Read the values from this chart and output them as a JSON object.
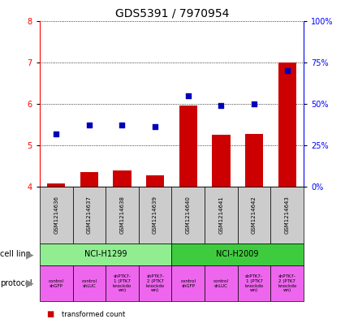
{
  "title": "GDS5391 / 7970954",
  "samples": [
    "GSM1214636",
    "GSM1214637",
    "GSM1214638",
    "GSM1214639",
    "GSM1214640",
    "GSM1214641",
    "GSM1214642",
    "GSM1214643"
  ],
  "transformed_count": [
    4.07,
    4.35,
    4.38,
    4.28,
    5.96,
    5.25,
    5.27,
    7.0
  ],
  "percentile_rank": [
    32,
    37,
    37,
    36,
    55,
    49,
    50,
    70
  ],
  "ylim_left": [
    4,
    8
  ],
  "ylim_right": [
    0,
    100
  ],
  "yticks_left": [
    4,
    5,
    6,
    7,
    8
  ],
  "yticks_right": [
    0,
    25,
    50,
    75,
    100
  ],
  "ytick_labels_right": [
    "0%",
    "25%",
    "50%",
    "75%",
    "100%"
  ],
  "cell_line_groups": [
    {
      "label": "NCI-H1299",
      "start": 0,
      "end": 3,
      "color": "#90EE90"
    },
    {
      "label": "NCI-H2009",
      "start": 4,
      "end": 7,
      "color": "#3ECC3E"
    }
  ],
  "protocols": [
    {
      "label": "control\nshGFP"
    },
    {
      "label": "control\nshLUC"
    },
    {
      "label": "shPTK7-\n1 (PTK7\nknockdo\nwn)"
    },
    {
      "label": "shPTK7-\n2 (PTK7\nknockdo\nwn)"
    },
    {
      "label": "control\nshGFP"
    },
    {
      "label": "control\nshLUC"
    },
    {
      "label": "shPTK7-\n1 (PTK7\nknockdo\nwn)"
    },
    {
      "label": "shPTK7-\n2 (PTK7\nknockdo\nwn)"
    }
  ],
  "protocol_color": "#EE66EE",
  "bar_color": "#CC0000",
  "dot_color": "#0000BB",
  "bar_bottom": 4.0,
  "sample_box_color": "#CCCCCC",
  "tick_fontsize": 7,
  "title_fontsize": 10,
  "sample_fontsize": 5,
  "cell_fontsize": 7,
  "proto_fontsize": 4,
  "legend_fontsize": 6,
  "label_fontsize": 7,
  "arrow_color": "#888888"
}
